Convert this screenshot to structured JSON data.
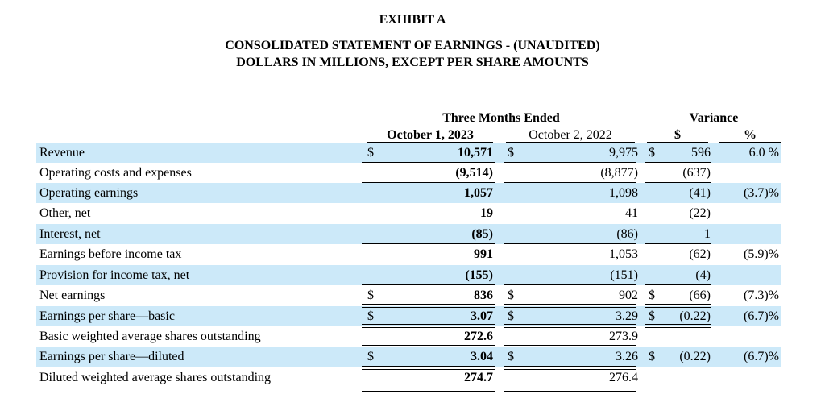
{
  "header": {
    "exhibit": "EXHIBIT A",
    "subtitle1": "CONSOLIDATED STATEMENT OF EARNINGS - (UNAUDITED)",
    "subtitle2": "DOLLARS IN MILLIONS, EXCEPT PER SHARE AMOUNTS"
  },
  "columns": {
    "group1": "Three Months Ended",
    "group2": "Variance",
    "col1": "October 1, 2023",
    "col2": "October 2, 2022",
    "col3": "$",
    "col4": "%"
  },
  "rows": [
    {
      "label": "Revenue",
      "d1": "$",
      "v1": "10,571",
      "d2": "$",
      "v2": "9,975",
      "d3": "$",
      "v3": "596",
      "v4": "6.0 %"
    },
    {
      "label": "Operating costs and expenses",
      "d1": "",
      "v1": "(9,514)",
      "d2": "",
      "v2": "(8,877)",
      "d3": "",
      "v3": "(637)",
      "v4": ""
    },
    {
      "label": "Operating earnings",
      "d1": "",
      "v1": "1,057",
      "d2": "",
      "v2": "1,098",
      "d3": "",
      "v3": "(41)",
      "v4": "(3.7)%"
    },
    {
      "label": "Other, net",
      "d1": "",
      "v1": "19",
      "d2": "",
      "v2": "41",
      "d3": "",
      "v3": "(22)",
      "v4": ""
    },
    {
      "label": "Interest, net",
      "d1": "",
      "v1": "(85)",
      "d2": "",
      "v2": "(86)",
      "d3": "",
      "v3": "1",
      "v4": ""
    },
    {
      "label": "Earnings before income tax",
      "d1": "",
      "v1": "991",
      "d2": "",
      "v2": "1,053",
      "d3": "",
      "v3": "(62)",
      "v4": "(5.9)%"
    },
    {
      "label": "Provision for income tax, net",
      "d1": "",
      "v1": "(155)",
      "d2": "",
      "v2": "(151)",
      "d3": "",
      "v3": "(4)",
      "v4": ""
    },
    {
      "label": "Net earnings",
      "d1": "$",
      "v1": "836",
      "d2": "$",
      "v2": "902",
      "d3": "$",
      "v3": "(66)",
      "v4": "(7.3)%"
    },
    {
      "label": "Earnings per share—basic",
      "d1": "$",
      "v1": "3.07",
      "d2": "$",
      "v2": "3.29",
      "d3": "$",
      "v3": "(0.22)",
      "v4": "(6.7)%"
    },
    {
      "label": "Basic weighted average shares outstanding",
      "d1": "",
      "v1": "272.6",
      "d2": "",
      "v2": "273.9",
      "d3": "",
      "v3": "",
      "v4": ""
    },
    {
      "label": "Earnings per share—diluted",
      "d1": "$",
      "v1": "3.04",
      "d2": "$",
      "v2": "3.26",
      "d3": "$",
      "v3": "(0.22)",
      "v4": "(6.7)%"
    },
    {
      "label": "Diluted weighted average shares outstanding",
      "d1": "",
      "v1": "274.7",
      "d2": "",
      "v2": "276.4",
      "d3": "",
      "v3": "",
      "v4": ""
    }
  ]
}
